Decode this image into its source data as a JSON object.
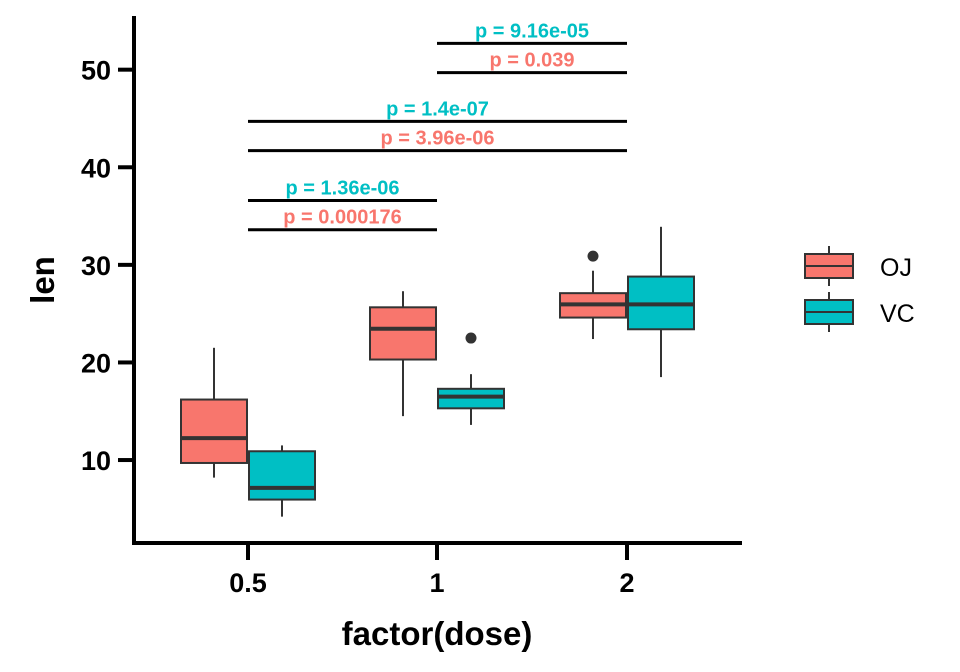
{
  "chart_data": {
    "type": "box",
    "xlabel": "factor(dose)",
    "ylabel": "len",
    "categories": [
      "0.5",
      "1",
      "2"
    ],
    "ylim": [
      1.5,
      55.5
    ],
    "yticks": [
      10,
      20,
      30,
      40,
      50
    ],
    "grid": false,
    "legend_position": "right",
    "series": [
      {
        "name": "OJ",
        "color": "#F8766D",
        "boxes": [
          {
            "category": "0.5",
            "min": 8.2,
            "q1": 9.7,
            "median": 12.25,
            "q3": 16.2,
            "max": 21.5,
            "outliers": []
          },
          {
            "category": "1",
            "min": 14.5,
            "q1": 20.3,
            "median": 23.45,
            "q3": 25.65,
            "max": 27.3,
            "outliers": []
          },
          {
            "category": "2",
            "min": 22.4,
            "q1": 24.6,
            "median": 25.95,
            "q3": 27.1,
            "max": 29.4,
            "outliers": [
              30.9
            ]
          }
        ]
      },
      {
        "name": "VC",
        "color": "#00BFC4",
        "boxes": [
          {
            "category": "0.5",
            "min": 4.2,
            "q1": 5.95,
            "median": 7.15,
            "q3": 10.9,
            "max": 11.5,
            "outliers": []
          },
          {
            "category": "1",
            "min": 13.6,
            "q1": 15.3,
            "median": 16.5,
            "q3": 17.3,
            "max": 18.8,
            "outliers": [
              22.5
            ]
          },
          {
            "category": "2",
            "min": 18.5,
            "q1": 23.4,
            "median": 25.95,
            "q3": 28.8,
            "max": 33.9,
            "outliers": []
          }
        ]
      }
    ],
    "comparisons": [
      {
        "from": "0.5",
        "to": "1",
        "y": 33.6,
        "label": "p = 0.000176",
        "color": "#F8766D"
      },
      {
        "from": "0.5",
        "to": "1",
        "y": 36.6,
        "label": "p = 1.36e-06",
        "color": "#00BFC4"
      },
      {
        "from": "0.5",
        "to": "2",
        "y": 41.7,
        "label": "p = 3.96e-06",
        "color": "#F8766D"
      },
      {
        "from": "0.5",
        "to": "2",
        "y": 44.7,
        "label": "p = 1.4e-07",
        "color": "#00BFC4"
      },
      {
        "from": "1",
        "to": "2",
        "y": 49.7,
        "label": "p = 0.039",
        "color": "#F8766D"
      },
      {
        "from": "1",
        "to": "2",
        "y": 52.7,
        "label": "p = 9.16e-05",
        "color": "#00BFC4"
      }
    ]
  }
}
